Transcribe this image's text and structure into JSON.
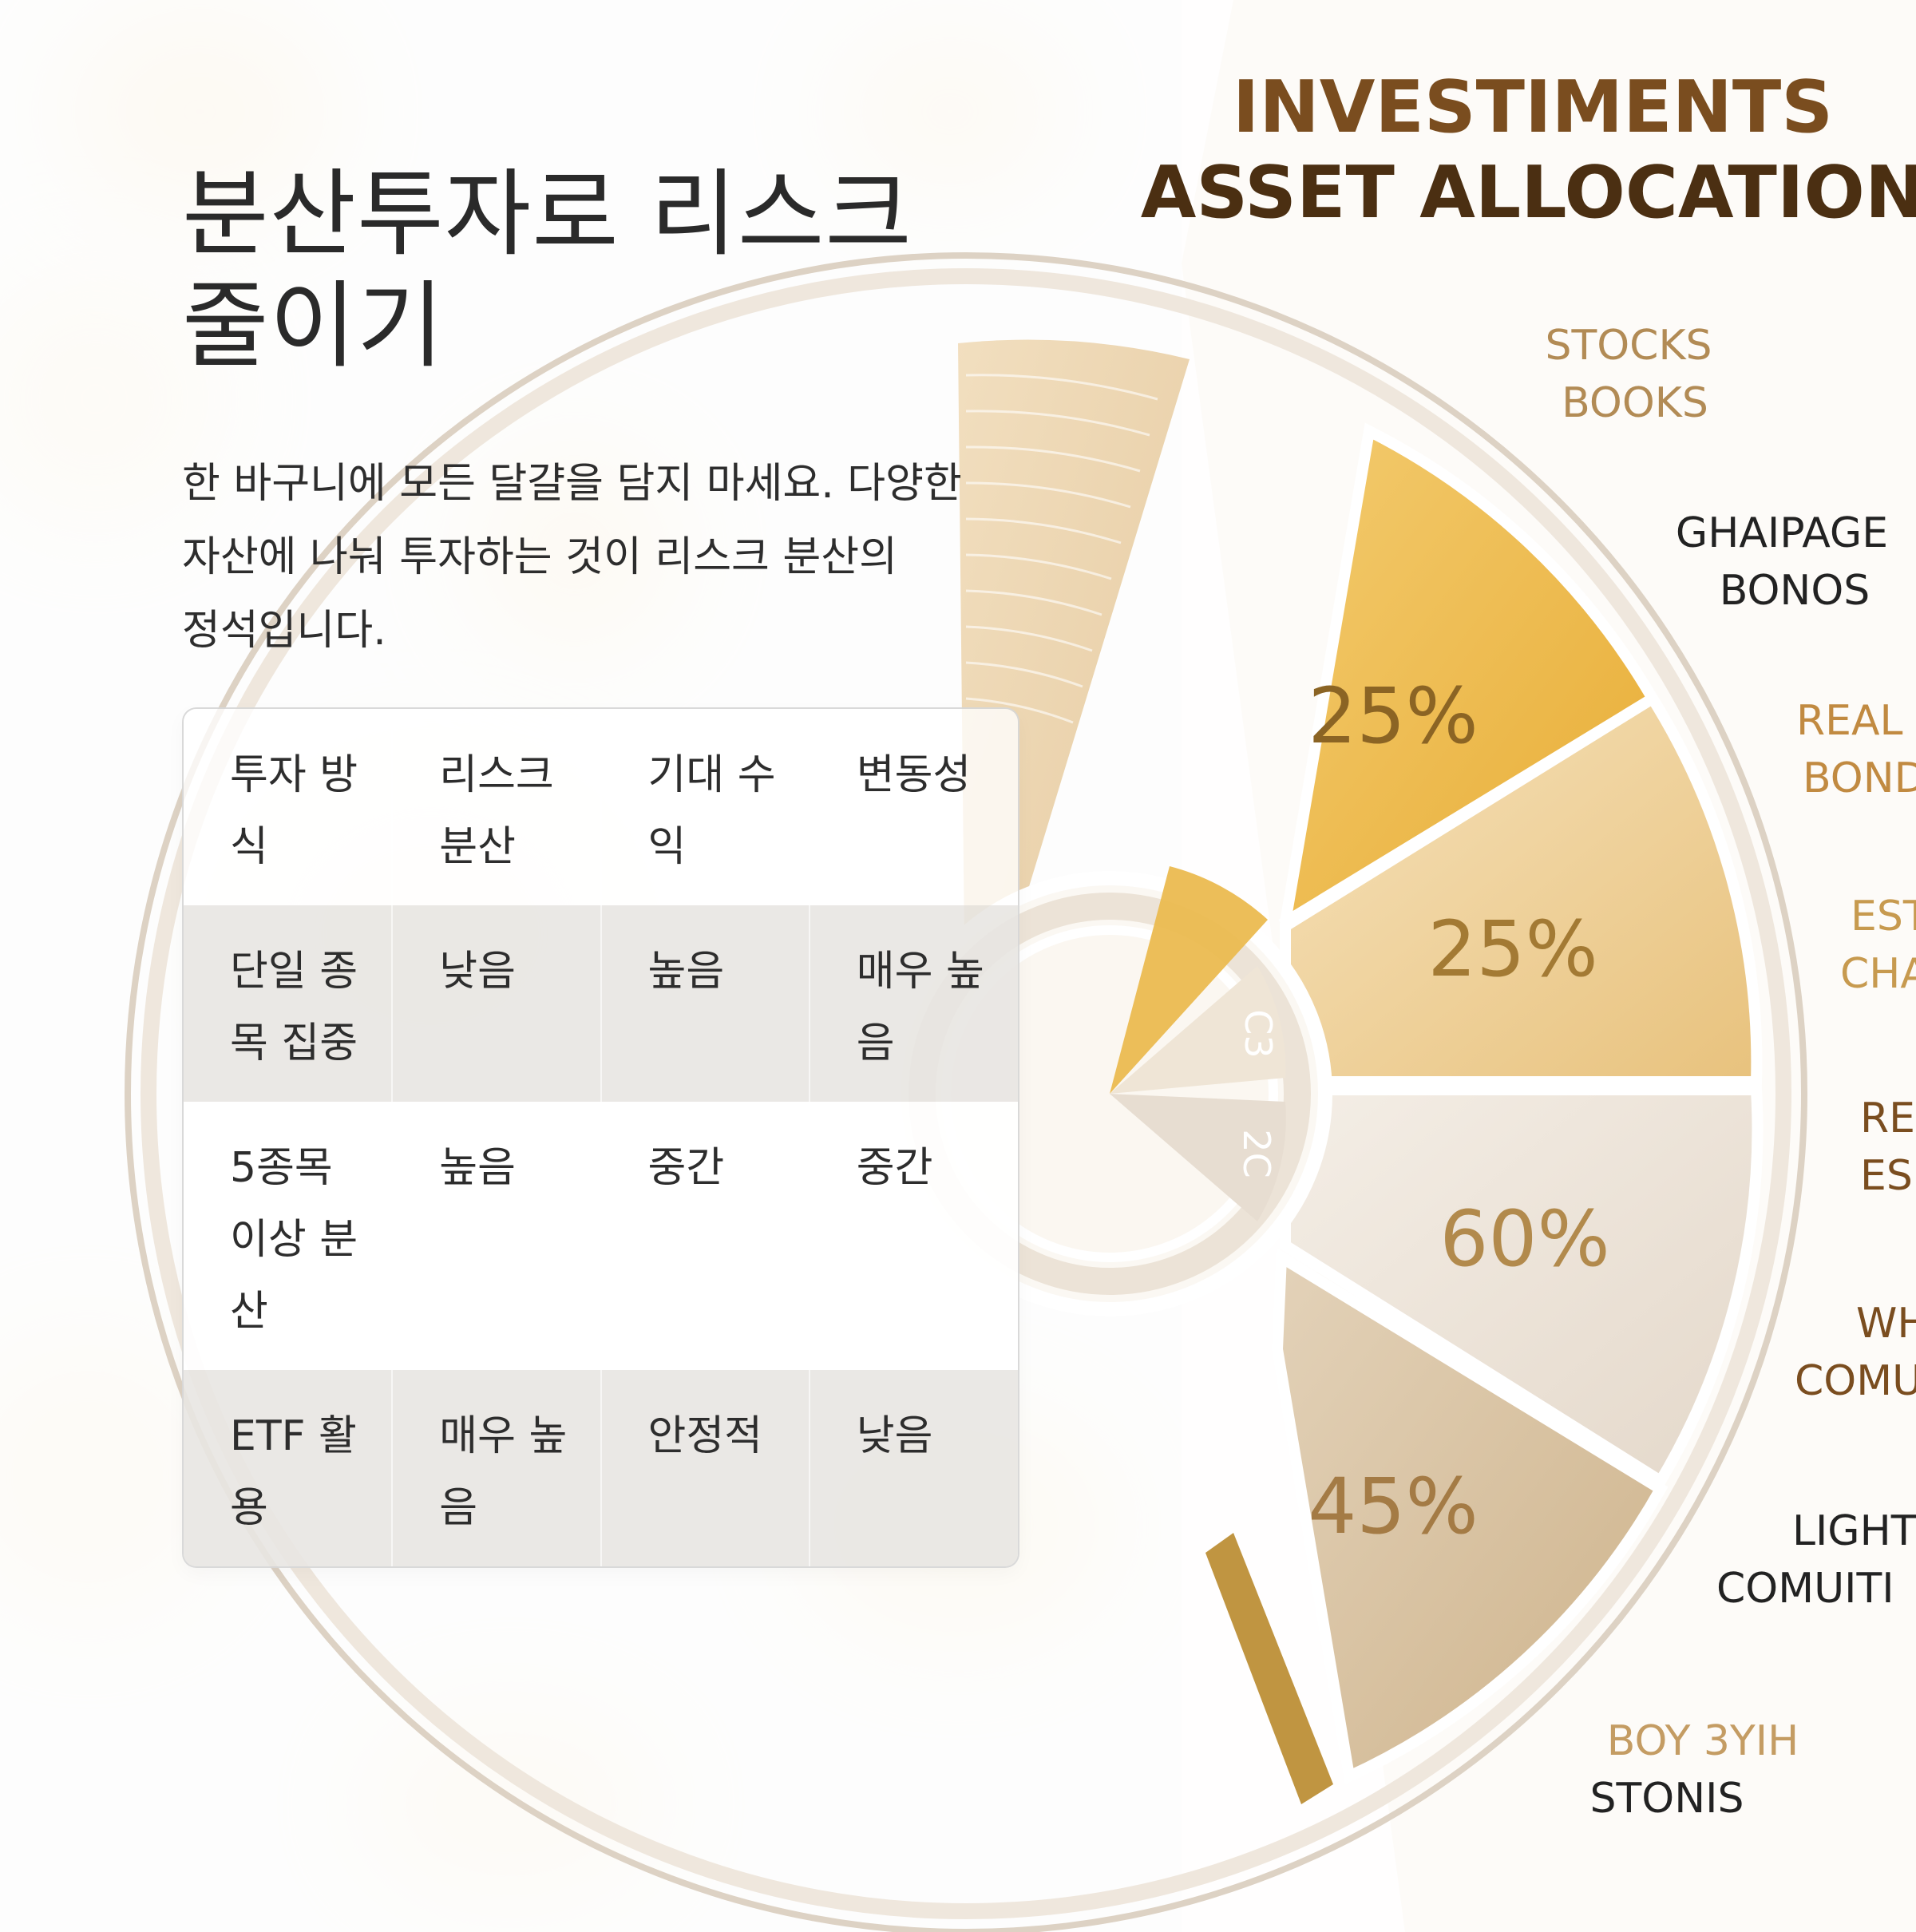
{
  "left": {
    "title": "분산투자로 리스크 줄이기",
    "intro": "한 바구니에 모든 달걀을 담지 마세요. 다양한 자산에 나눠 투자하는 것이 리스크 분산의 정석입니다.",
    "table": {
      "headers": [
        "투자 방식",
        "리스크 분산",
        "기대 수익",
        "변동성"
      ],
      "rows": [
        [
          "단일 종목 집중",
          "낮음",
          "높음",
          "매우 높음"
        ],
        [
          "5종목 이상 분산",
          "높음",
          "중간",
          "중간"
        ],
        [
          "ETF 활용",
          "매우 높음",
          "안정적",
          "낮음"
        ]
      ]
    }
  },
  "right": {
    "title_line1": "INVESTIMENTS",
    "title_line2": "ASSET ALLOCATION",
    "slice_labels": [
      "25%",
      "25%",
      "60%",
      "45%"
    ],
    "ring_labels": [
      "C3",
      "2C"
    ],
    "side_labels": [
      {
        "line1": "STOCKS",
        "line2": "BOOKS"
      },
      {
        "line1": "GHAIPAGE",
        "line2": "BONOS"
      },
      {
        "line1": "REAL",
        "line2": "BOND"
      },
      {
        "line1": "EST",
        "line2": "CHA"
      },
      {
        "line1": "RE",
        "line2": "ES"
      },
      {
        "line1": "WH",
        "line2": "COMU"
      },
      {
        "line1": "LIGHT",
        "line2": "COMUITI"
      },
      {
        "line1": "BOY 3YIH",
        "line2": "STONIS"
      }
    ]
  },
  "colors": {
    "brown": "#7a4d1f",
    "gold": "#f0c566",
    "light_gold": "#f1ddb3",
    "cream": "#f0e7db",
    "tan": "#dcc7a5",
    "accent_gold": "#b5893d"
  }
}
